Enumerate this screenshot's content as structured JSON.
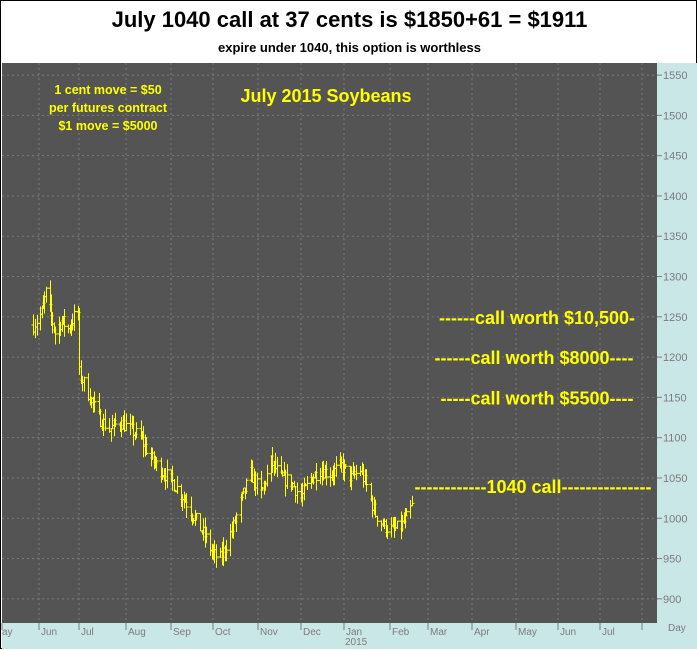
{
  "header": {
    "title": "July 1040 call at 37 cents is $1850+61 = $1911",
    "subtitle": "expire under 1040, this option is worthless"
  },
  "colors": {
    "plot_background": "#545454",
    "price_bars": "#ffff00",
    "annotation_text": "#ffff00",
    "axis_panel": "#c9e7e7",
    "axis_text": "#7c7c7c",
    "grid": "#7a7a7a"
  },
  "chart_data": {
    "type": "bar",
    "style": "ohlc-price-bars",
    "title": "July 2015 Soybeans",
    "xlabel": "",
    "ylabel": "",
    "y_axis_side": "right",
    "ylim": [
      870,
      1565
    ],
    "y_ticks": [
      900,
      950,
      1000,
      1050,
      1100,
      1150,
      1200,
      1250,
      1300,
      1350,
      1400,
      1450,
      1500,
      1550
    ],
    "x_unit": "Day",
    "x_year_label": "2015",
    "month_labels": [
      "ay",
      "Jun",
      "Jul",
      "Aug",
      "Sep",
      "Oct",
      "Nov",
      "Dec",
      "Jan",
      "Feb",
      "Mar",
      "Apr",
      "May",
      "Jun",
      "Jul"
    ],
    "grid": true,
    "info_box": [
      "1 cent move = $50",
      "per futures contract",
      "$1 move = $5000"
    ],
    "annotations": [
      {
        "text": "------call worth $10,500-",
        "y": 1250
      },
      {
        "text": "------call worth $8000----",
        "y": 1200
      },
      {
        "text": "-----call worth $5500----",
        "y": 1150
      },
      {
        "text": "------------1040 call---------------",
        "y": 1040
      }
    ],
    "price_path": [
      {
        "date": "2014-05-28",
        "close": 1240
      },
      {
        "date": "2014-06-03",
        "close": 1255
      },
      {
        "date": "2014-06-06",
        "close": 1280
      },
      {
        "date": "2014-06-10",
        "close": 1250
      },
      {
        "date": "2014-06-13",
        "close": 1230
      },
      {
        "date": "2014-06-18",
        "close": 1245
      },
      {
        "date": "2014-06-23",
        "close": 1235
      },
      {
        "date": "2014-06-27",
        "close": 1250
      },
      {
        "date": "2014-06-30",
        "close": 1255
      },
      {
        "date": "2014-07-01",
        "close": 1180
      },
      {
        "date": "2014-07-07",
        "close": 1155
      },
      {
        "date": "2014-07-14",
        "close": 1125
      },
      {
        "date": "2014-07-21",
        "close": 1110
      },
      {
        "date": "2014-07-28",
        "close": 1120
      },
      {
        "date": "2014-08-04",
        "close": 1110
      },
      {
        "date": "2014-08-11",
        "close": 1100
      },
      {
        "date": "2014-08-18",
        "close": 1075
      },
      {
        "date": "2014-08-25",
        "close": 1060
      },
      {
        "date": "2014-09-02",
        "close": 1045
      },
      {
        "date": "2014-09-10",
        "close": 1025
      },
      {
        "date": "2014-09-18",
        "close": 1000
      },
      {
        "date": "2014-09-26",
        "close": 975
      },
      {
        "date": "2014-10-01",
        "close": 955
      },
      {
        "date": "2014-10-06",
        "close": 950
      },
      {
        "date": "2014-10-14",
        "close": 985
      },
      {
        "date": "2014-10-20",
        "close": 1020
      },
      {
        "date": "2014-10-27",
        "close": 1055
      },
      {
        "date": "2014-11-03",
        "close": 1030
      },
      {
        "date": "2014-11-10",
        "close": 1070
      },
      {
        "date": "2014-11-17",
        "close": 1050
      },
      {
        "date": "2014-11-24",
        "close": 1045
      },
      {
        "date": "2014-12-01",
        "close": 1025
      },
      {
        "date": "2014-12-08",
        "close": 1050
      },
      {
        "date": "2014-12-15",
        "close": 1060
      },
      {
        "date": "2014-12-22",
        "close": 1055
      },
      {
        "date": "2014-12-30",
        "close": 1065
      },
      {
        "date": "2015-01-06",
        "close": 1050
      },
      {
        "date": "2015-01-12",
        "close": 1060
      },
      {
        "date": "2015-01-16",
        "close": 1040
      },
      {
        "date": "2015-01-22",
        "close": 1005
      },
      {
        "date": "2015-01-28",
        "close": 990
      },
      {
        "date": "2015-02-03",
        "close": 985
      },
      {
        "date": "2015-02-09",
        "close": 990
      },
      {
        "date": "2015-02-13",
        "close": 1000
      },
      {
        "date": "2015-02-17",
        "close": 1015
      }
    ]
  }
}
